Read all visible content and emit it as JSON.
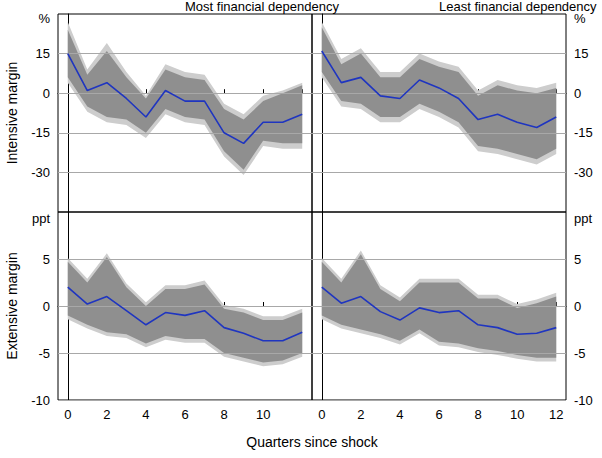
{
  "chart_data": {
    "type": "line",
    "xlabel": "Quarters since shock",
    "panels": [
      {
        "title": "Most financial dependency",
        "ylabel": "Intensive margin",
        "y_unit": "%",
        "x": [
          0,
          1,
          2,
          3,
          4,
          5,
          6,
          7,
          8,
          9,
          10,
          11,
          12
        ],
        "values": [
          15,
          1,
          4,
          -2,
          -9,
          1,
          -3,
          -3,
          -15,
          -19,
          -11,
          -11,
          -8
        ],
        "color": "#1f35c0",
        "bands": [
          {
            "color": "#cdcdcd",
            "lower": [
              4,
              -7,
              -11,
              -12,
              -17,
              -8,
              -11,
              -12,
              -24,
              -31,
              -20,
              -21,
              -21
            ],
            "upper": [
              27,
              9,
              19,
              8,
              -1,
              11,
              8,
              7,
              -4,
              -8,
              -1,
              1,
              4
            ]
          },
          {
            "color": "#8f8f8f",
            "lower": [
              6,
              -5,
              -9,
              -10,
              -15,
              -6,
              -9,
              -10,
              -22,
              -29,
              -18,
              -19,
              -19
            ],
            "upper": [
              24,
              7,
              16,
              6,
              -2,
              9,
              6,
              5,
              -6,
              -10,
              -3,
              0,
              3
            ]
          }
        ],
        "xlim": [
          -0.5,
          12.5
        ],
        "xticks": [
          0,
          2,
          4,
          6,
          8,
          10,
          12
        ],
        "ylim": [
          -45,
          30
        ],
        "yticks": [
          -30,
          -15,
          0,
          15
        ],
        "grid": true,
        "tick_labels": "y"
      },
      {
        "title": "Least financial dependency",
        "y_unit": "%",
        "x": [
          0,
          1,
          2,
          3,
          4,
          5,
          6,
          7,
          8,
          9,
          10,
          11,
          12
        ],
        "values": [
          16,
          4,
          6,
          -1,
          -2,
          5,
          2,
          -2,
          -10,
          -8,
          -11,
          -13,
          -9
        ],
        "color": "#1f35c0",
        "bands": [
          {
            "color": "#cdcdcd",
            "lower": [
              6,
              -5,
              -6,
              -11,
              -11,
              -6,
              -9,
              -13,
              -22,
              -23,
              -25,
              -27,
              -23
            ],
            "upper": [
              27,
              13,
              17,
              8,
              8,
              15,
              12,
              10,
              1,
              5,
              3,
              2,
              4
            ]
          },
          {
            "color": "#8f8f8f",
            "lower": [
              8,
              -3,
              -4,
              -9,
              -9,
              -4,
              -7,
              -11,
              -20,
              -21,
              -23,
              -25,
              -21
            ],
            "upper": [
              25,
              11,
              15,
              6,
              6,
              13,
              10,
              8,
              -1,
              3,
              1,
              0,
              2
            ]
          }
        ],
        "xlim": [
          -0.5,
          12.5
        ],
        "xticks": [
          0,
          2,
          4,
          6,
          8,
          10,
          12
        ],
        "ylim": [
          -45,
          30
        ],
        "yticks": [
          -30,
          -15,
          0,
          15
        ],
        "grid": true,
        "tick_labels": "y"
      },
      {
        "ylabel": "Extensive margin",
        "y_unit": "ppt",
        "x": [
          0,
          1,
          2,
          3,
          4,
          5,
          6,
          7,
          8,
          9,
          10,
          11,
          12
        ],
        "values": [
          2,
          0.2,
          1,
          -0.5,
          -2,
          -0.7,
          -1,
          -0.5,
          -2.3,
          -2.9,
          -3.7,
          -3.7,
          -2.8
        ],
        "color": "#1f35c0",
        "bands": [
          {
            "color": "#cdcdcd",
            "lower": [
              -1.4,
              -2.4,
              -3.2,
              -3.4,
              -4.4,
              -3.6,
              -3.9,
              -3.9,
              -5.4,
              -5.9,
              -6.4,
              -6.2,
              -5.4
            ],
            "upper": [
              5.1,
              2.9,
              5.6,
              2.4,
              0.4,
              2.2,
              2.2,
              2.7,
              0.1,
              -0.3,
              -1.1,
              -1.1,
              -0.3
            ]
          },
          {
            "color": "#8f8f8f",
            "lower": [
              -1,
              -2,
              -2.8,
              -3,
              -4,
              -3.2,
              -3.5,
              -3.5,
              -5,
              -5.5,
              -6,
              -5.8,
              -5
            ],
            "upper": [
              4.7,
              2.5,
              5.2,
              2,
              0,
              1.8,
              1.8,
              2.3,
              -0.3,
              -0.7,
              -1.5,
              -1.5,
              -0.7
            ]
          }
        ],
        "xlim": [
          -0.5,
          12.5
        ],
        "xticks": [
          0,
          2,
          4,
          6,
          8,
          10
        ],
        "ylim": [
          -10,
          10
        ],
        "yticks": [
          -10,
          -5,
          0,
          5
        ],
        "grid": true,
        "tick_labels": true
      },
      {
        "y_unit": "ppt",
        "x": [
          0,
          1,
          2,
          3,
          4,
          5,
          6,
          7,
          8,
          9,
          10,
          11,
          12
        ],
        "values": [
          2,
          0.3,
          1,
          -0.6,
          -1.5,
          -0.2,
          -0.7,
          -0.5,
          -2,
          -2.3,
          -3,
          -2.9,
          -2.3
        ],
        "color": "#1f35c0",
        "bands": [
          {
            "color": "#cdcdcd",
            "lower": [
              -1.4,
              -2.4,
              -2.9,
              -3.4,
              -4.1,
              -2.9,
              -4.2,
              -4.4,
              -4.9,
              -5.2,
              -5.6,
              -5.9,
              -5.9
            ],
            "upper": [
              5.1,
              2.9,
              5.9,
              2.2,
              0.9,
              2.9,
              2.9,
              2.9,
              1.2,
              1.2,
              0.2,
              0.7,
              1.4
            ]
          },
          {
            "color": "#8f8f8f",
            "lower": [
              -1,
              -2,
              -2.5,
              -3,
              -3.7,
              -2.5,
              -3.8,
              -4,
              -4.5,
              -4.8,
              -5.2,
              -5.5,
              -5.5
            ],
            "upper": [
              4.7,
              2.5,
              5.5,
              1.8,
              0.5,
              2.5,
              2.5,
              2.5,
              0.8,
              0.8,
              -0.2,
              0.3,
              1
            ]
          }
        ],
        "xlim": [
          -0.5,
          12.5
        ],
        "xticks": [
          0,
          2,
          4,
          6,
          8,
          10,
          12
        ],
        "ylim": [
          -10,
          10
        ],
        "yticks": [
          -10,
          -5,
          0,
          5
        ],
        "grid": true,
        "tick_labels": true
      }
    ]
  }
}
